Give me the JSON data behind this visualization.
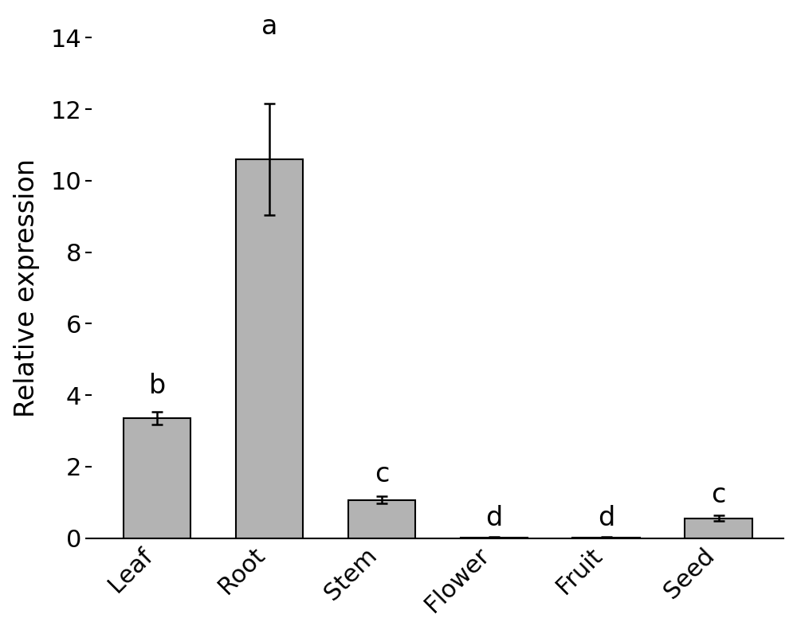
{
  "categories": [
    "Leaf",
    "Root",
    "Stem",
    "Flower",
    "Fruit",
    "Seed"
  ],
  "values": [
    3.35,
    10.6,
    1.07,
    0.02,
    0.02,
    0.55
  ],
  "errors": [
    0.18,
    1.55,
    0.1,
    0.01,
    0.01,
    0.08
  ],
  "significance_labels": [
    "b",
    "a",
    "c",
    "d",
    "d",
    "c"
  ],
  "bar_color": "#b3b3b3",
  "bar_edgecolor": "#000000",
  "ylabel": "Relative expression",
  "ylim": [
    0,
    14
  ],
  "yticks": [
    0,
    2,
    4,
    6,
    8,
    10,
    12,
    14
  ],
  "background_color": "#ffffff",
  "bar_width": 0.6,
  "ylabel_fontsize": 24,
  "tick_fontsize": 22,
  "label_fontsize": 22,
  "sig_fontsize": 24,
  "sig_offset": [
    0.35,
    1.8,
    0.25,
    0.15,
    0.15,
    0.2
  ]
}
